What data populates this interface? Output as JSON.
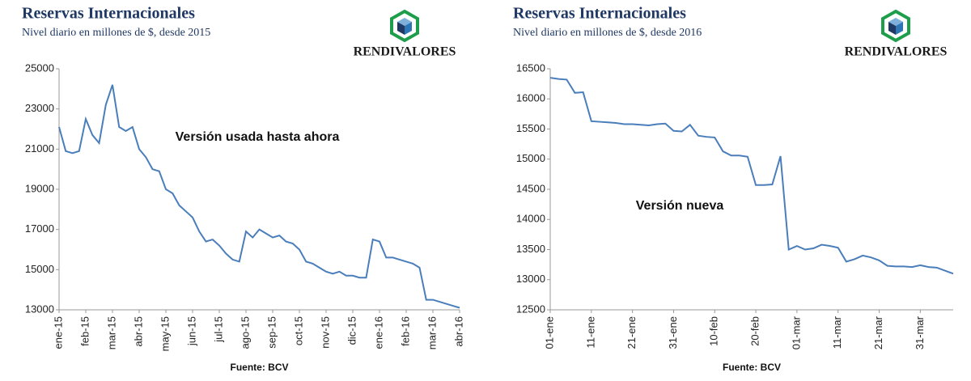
{
  "chart_data": [
    {
      "type": "line",
      "title": "Reservas Internacionales",
      "subtitle": "Nivel diario en millones de $, desde 2015",
      "brand": "RENDIVALORES",
      "annotation": "Versión usada hasta ahora",
      "source": "Fuente: BCV",
      "categories": [
        "ene-15",
        null,
        null,
        null,
        "feb-15",
        null,
        null,
        null,
        "mar-15",
        null,
        null,
        null,
        "abr-15",
        null,
        null,
        null,
        "may-15",
        null,
        null,
        null,
        "jun-15",
        null,
        null,
        null,
        "jul-15",
        null,
        null,
        null,
        "ago-15",
        null,
        null,
        null,
        "sep-15",
        null,
        null,
        null,
        "oct-15",
        null,
        null,
        null,
        "nov-15",
        null,
        null,
        null,
        "dic-15",
        null,
        null,
        null,
        "ene-16",
        null,
        null,
        null,
        "feb-16",
        null,
        null,
        null,
        "mar-16",
        null,
        null,
        null,
        "abr-16"
      ],
      "series": [
        {
          "color": "#4a7ebb",
          "values": [
            22100,
            20900,
            20800,
            20900,
            22500,
            21700,
            21300,
            23200,
            24200,
            22100,
            21900,
            22100,
            21000,
            20600,
            20000,
            19900,
            19000,
            18800,
            18200,
            17900,
            17600,
            16900,
            16400,
            16500,
            16200,
            15800,
            15500,
            15400,
            16900,
            16600,
            17000,
            16800,
            16600,
            16700,
            16400,
            16300,
            16000,
            15400,
            15300,
            15100,
            14900,
            14800,
            14900,
            14700,
            14700,
            14600,
            14600,
            16500,
            16400,
            15600,
            15600,
            15500,
            15400,
            15300,
            15100,
            13500,
            13500,
            13400,
            13300,
            13200,
            13100
          ]
        }
      ],
      "ylim": [
        13000,
        25000
      ],
      "yticks": [
        13000,
        15000,
        17000,
        19000,
        21000,
        23000,
        25000
      ]
    },
    {
      "type": "line",
      "title": "Reservas Internacionales",
      "subtitle": "Nivel diario en millones de $, desde 2016",
      "brand": "RENDIVALORES",
      "annotation": "Versión nueva",
      "source": "Fuente: BCV",
      "categories": [
        "01-ene",
        null,
        null,
        null,
        null,
        "11-ene",
        null,
        null,
        null,
        null,
        "21-ene",
        null,
        null,
        null,
        null,
        "31-ene",
        null,
        null,
        null,
        null,
        "10-feb",
        null,
        null,
        null,
        null,
        "20-feb",
        null,
        null,
        null,
        null,
        "01-mar",
        null,
        null,
        null,
        null,
        "11-mar",
        null,
        null,
        null,
        null,
        "21-mar",
        null,
        null,
        null,
        null,
        "31-mar",
        null,
        null,
        null,
        null
      ],
      "series": [
        {
          "color": "#4a7ebb",
          "values": [
            16350,
            16330,
            16320,
            16100,
            16110,
            15630,
            15620,
            15610,
            15600,
            15580,
            15580,
            15570,
            15560,
            15580,
            15590,
            15470,
            15460,
            15570,
            15390,
            15370,
            15360,
            15130,
            15060,
            15060,
            15040,
            14570,
            14570,
            14580,
            15050,
            13500,
            13560,
            13500,
            13520,
            13580,
            13560,
            13530,
            13300,
            13340,
            13400,
            13370,
            13320,
            13230,
            13220,
            13220,
            13210,
            13240,
            13210,
            13200,
            13150,
            13100
          ]
        }
      ],
      "ylim": [
        12500,
        16500
      ],
      "yticks": [
        12500,
        13000,
        13500,
        14000,
        14500,
        15000,
        15500,
        16000,
        16500
      ]
    }
  ]
}
